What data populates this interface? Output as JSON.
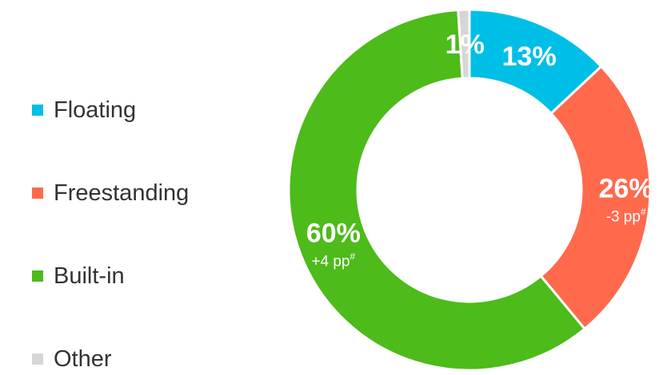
{
  "chart_data": {
    "type": "pie",
    "variant": "donut",
    "legend_position": "left",
    "categories": [
      "Floating",
      "Freestanding",
      "Built-in",
      "Other"
    ],
    "values": [
      13,
      26,
      60,
      1
    ],
    "colors": [
      "#00bfe7",
      "#ff6a4d",
      "#4dbb19",
      "#d6d6d6"
    ],
    "labels": [
      "13%",
      "26%",
      "60%",
      "1%"
    ],
    "changes": [
      "",
      "-3 pp#",
      "+4 pp#",
      ""
    ]
  }
}
